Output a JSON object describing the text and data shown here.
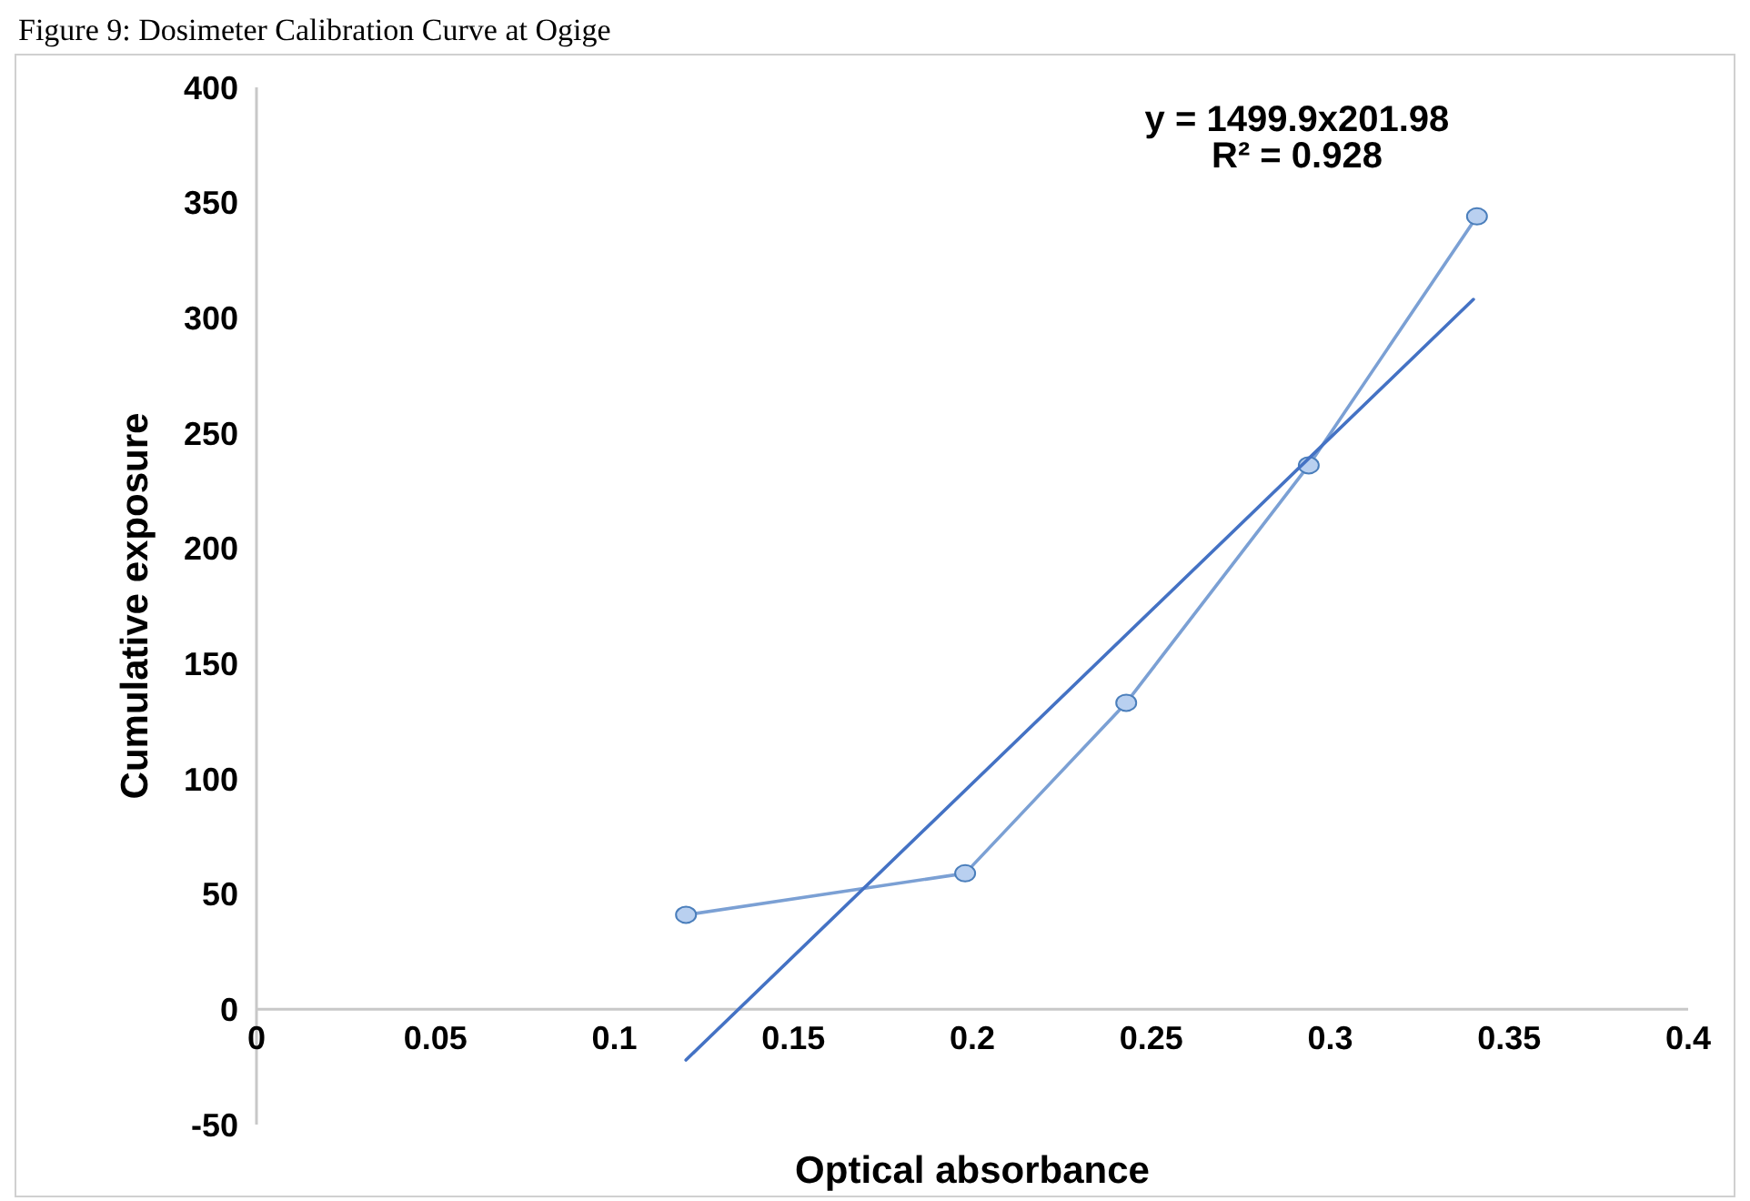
{
  "chart_data": {
    "type": "line",
    "title": "Figure 9: Dosimeter Calibration Curve at Ogige",
    "xlabel": "Optical absorbance",
    "ylabel": "Cumulative exposure",
    "annotations": [
      "y = 1499.9x201.98",
      "R² = 0.928"
    ],
    "xlim": [
      0,
      0.4
    ],
    "xticks": [
      0,
      0.05,
      0.1,
      0.15,
      0.2,
      0.25,
      0.3,
      0.35,
      0.4
    ],
    "ylim": [
      -50,
      400
    ],
    "yticks": [
      -50,
      0,
      50,
      100,
      150,
      200,
      250,
      300,
      350,
      400
    ],
    "grid": false,
    "series": [
      {
        "color": "#7ba0d4",
        "x": [
          0.12,
          0.198,
          0.243,
          0.294,
          0.341
        ],
        "values": [
          41,
          59,
          133,
          236,
          344
        ],
        "marker": "circle"
      },
      {
        "type": "line",
        "color": "#4472c4",
        "x": [
          0.12,
          0.34
        ],
        "values": [
          -22,
          308
        ],
        "marker": "none"
      }
    ]
  }
}
